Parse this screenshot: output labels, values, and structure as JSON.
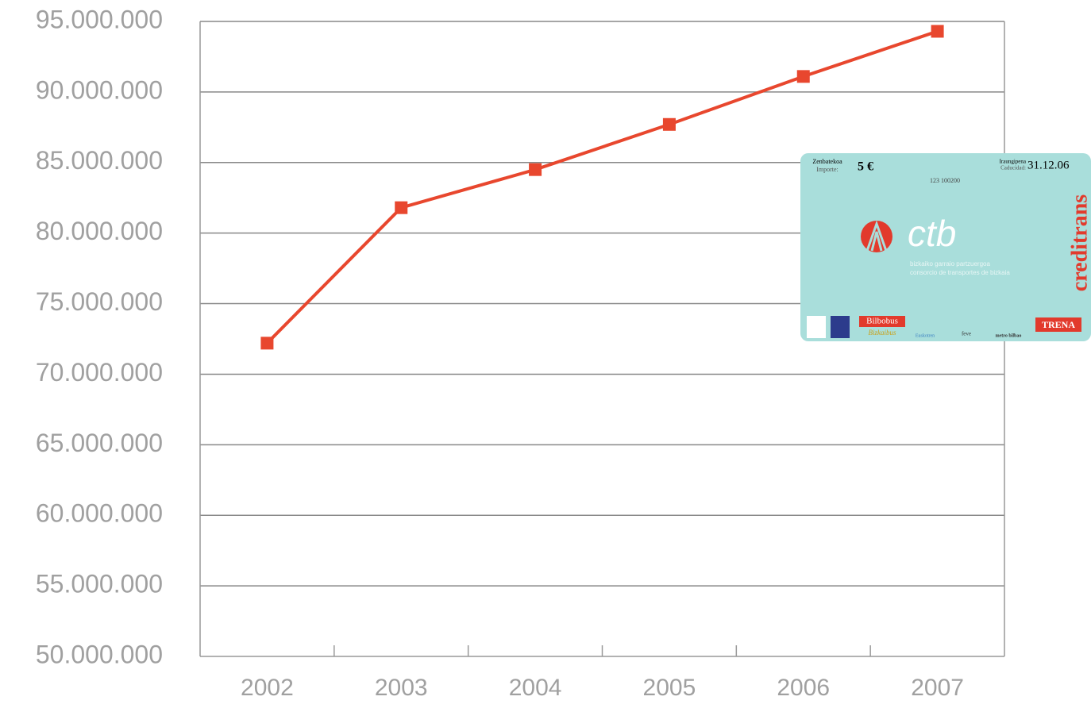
{
  "chart_data": {
    "type": "line",
    "categories": [
      "2002",
      "2003",
      "2004",
      "2005",
      "2006",
      "2007"
    ],
    "series": [
      {
        "color": "#e8472e",
        "values": [
          72200000,
          81800000,
          84500000,
          87700000,
          91100000,
          94300000
        ]
      }
    ],
    "ylim": [
      50000000,
      95000000
    ],
    "yticks": [
      {
        "value": 50000000,
        "label": "50.000.000"
      },
      {
        "value": 55000000,
        "label": "55.000.000"
      },
      {
        "value": 60000000,
        "label": "60.000.000"
      },
      {
        "value": 65000000,
        "label": "65.000.000"
      },
      {
        "value": 70000000,
        "label": "70.000.000"
      },
      {
        "value": 75000000,
        "label": "75.000.000"
      },
      {
        "value": 80000000,
        "label": "80.000.000"
      },
      {
        "value": 85000000,
        "label": "85.000.000"
      },
      {
        "value": 90000000,
        "label": "90.000.000"
      },
      {
        "value": 95000000,
        "label": "95.000.000"
      }
    ],
    "grid": true
  },
  "card": {
    "amount_label": "Zenbatekoa",
    "amount_label_es": "Importe:",
    "amount": "5 €",
    "serial": "123 100200",
    "expiry_label": "Iraungipena",
    "expiry_label_es": "Caducidad:",
    "expiry": "31.12.06",
    "logo": "ctb",
    "subtitle_eu": "bizkaiko garraio partzuergoa",
    "subtitle_es": "consorcio de transportes de bizkaia",
    "brand": "creditrans",
    "operators": [
      "Bilbobus",
      "Bizkaibus",
      "Euskotren",
      "feve",
      "metro bilbao",
      "TRENA"
    ]
  }
}
